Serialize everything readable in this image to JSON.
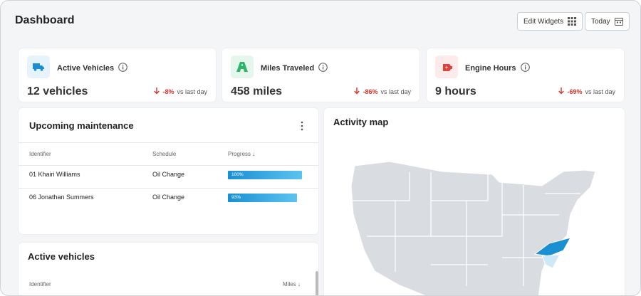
{
  "header": {
    "title": "Dashboard",
    "buttons": [
      "Edit Widgets",
      "Today"
    ]
  },
  "kpis": [
    {
      "label": "Active Vehicles",
      "value": "12 vehicles",
      "change": "-8%",
      "comparison": "vs last day"
    },
    {
      "label": "Miles Traveled",
      "value": "458 miles",
      "change": "-86%",
      "comparison": "vs last day"
    },
    {
      "label": "Engine Hours",
      "value": "9 hours",
      "change": "-69%",
      "comparison": "vs last day"
    }
  ],
  "maintenance": {
    "title": "Upcoming maintenance",
    "columns": [
      "Identifier",
      "Schedule",
      "Progress"
    ],
    "rows": [
      {
        "identifier": "01 Khairi Williams",
        "schedule": "Oil Change",
        "progress": 100,
        "progress_label": "100%"
      },
      {
        "identifier": "06 Jonathan Summers",
        "schedule": "Oil Change",
        "progress": 93,
        "progress_label": "93%"
      }
    ]
  },
  "active_vehicles": {
    "title": "Active vehicles",
    "columns": [
      "Identifier",
      "Miles"
    ]
  },
  "map": {
    "title": "Activity map"
  }
}
